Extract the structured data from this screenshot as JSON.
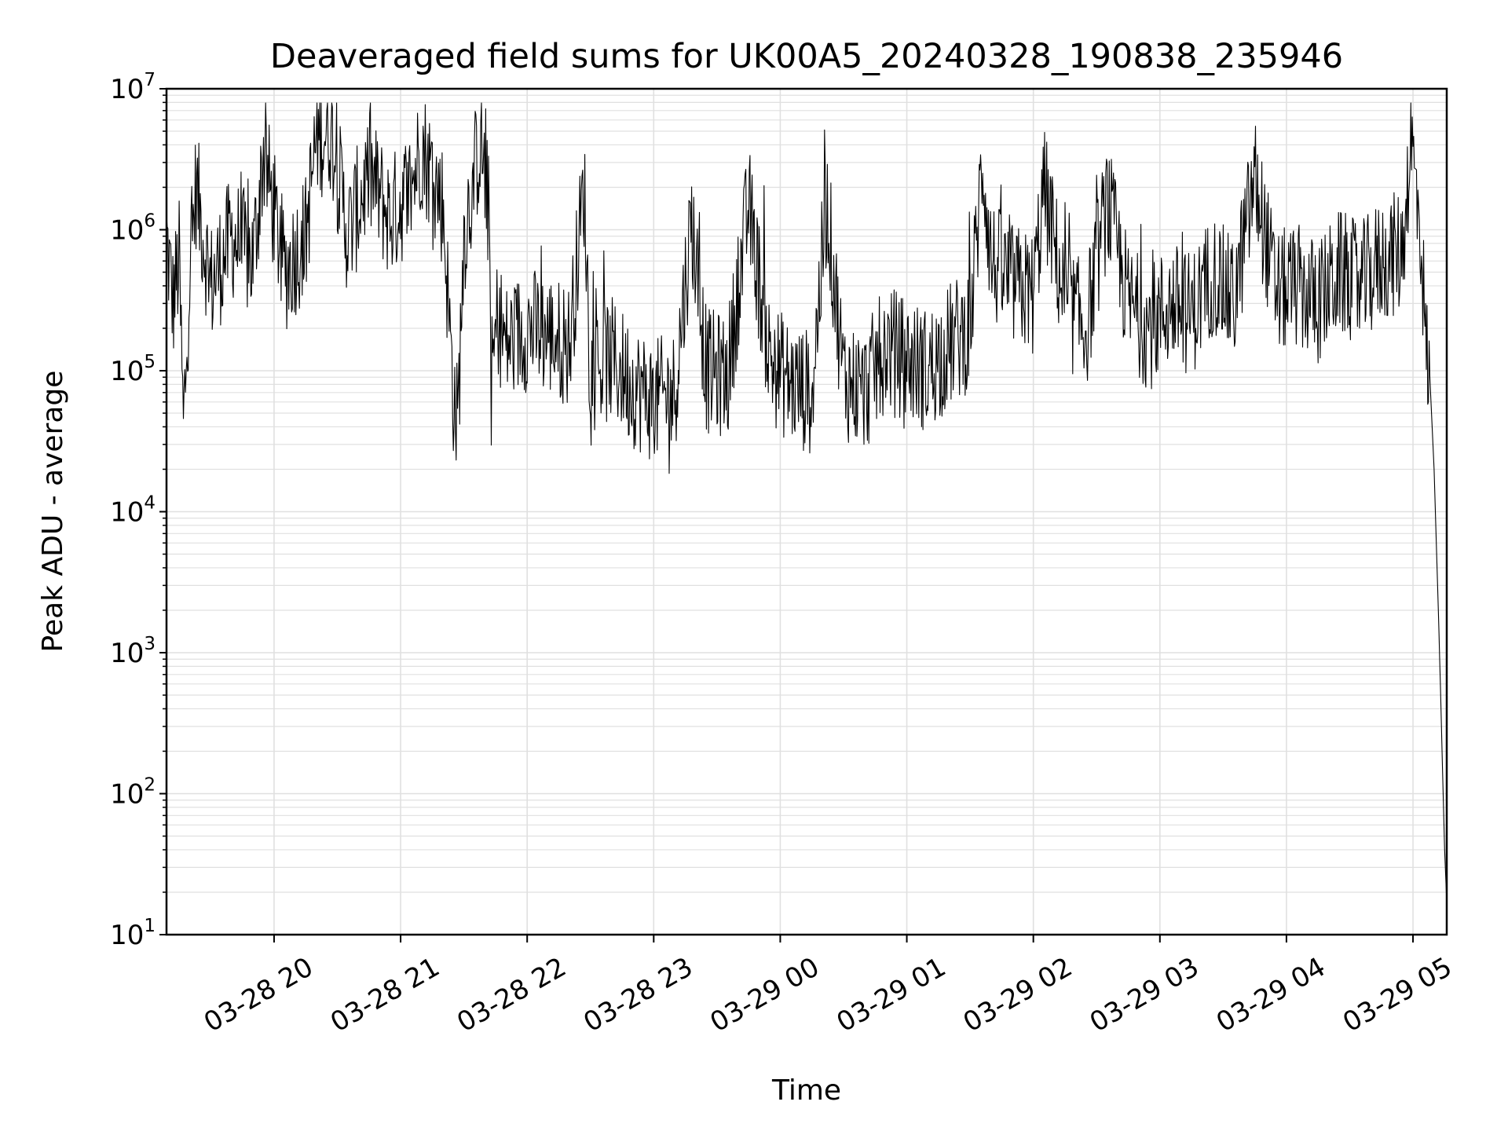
{
  "chart_data": {
    "type": "line",
    "title": "Deaveraged field sums for UK00A5_20240328_190838_235946",
    "xlabel": "Time",
    "ylabel": "Peak ADU - average",
    "yscale": "log",
    "ylim": [
      10,
      10000000
    ],
    "xlim": [
      "2024-03-28 19:09",
      "2024-03-29 05:16"
    ],
    "grid": true,
    "legend": "none",
    "line_color": "#000000",
    "grid_color": "#e0e0e0",
    "x_ticks": [
      {
        "label": "03-28 20",
        "t": "2024-03-28 20:00"
      },
      {
        "label": "03-28 21",
        "t": "2024-03-28 21:00"
      },
      {
        "label": "03-28 22",
        "t": "2024-03-28 22:00"
      },
      {
        "label": "03-28 23",
        "t": "2024-03-28 23:00"
      },
      {
        "label": "03-29 00",
        "t": "2024-03-29 00:00"
      },
      {
        "label": "03-29 01",
        "t": "2024-03-29 01:00"
      },
      {
        "label": "03-29 02",
        "t": "2024-03-29 02:00"
      },
      {
        "label": "03-29 03",
        "t": "2024-03-29 03:00"
      },
      {
        "label": "03-29 04",
        "t": "2024-03-29 04:00"
      },
      {
        "label": "03-29 05",
        "t": "2024-03-29 05:00"
      }
    ],
    "y_ticks": [
      {
        "base": "10",
        "exp": "1",
        "value": 10
      },
      {
        "base": "10",
        "exp": "2",
        "value": 100
      },
      {
        "base": "10",
        "exp": "3",
        "value": 1000
      },
      {
        "base": "10",
        "exp": "4",
        "value": 10000
      },
      {
        "base": "10",
        "exp": "5",
        "value": 100000
      },
      {
        "base": "10",
        "exp": "6",
        "value": 1000000
      },
      {
        "base": "10",
        "exp": "7",
        "value": 10000000
      }
    ],
    "series": [
      {
        "points": [
          [
            "2024-03-28 19:09",
            900000
          ],
          [
            "2024-03-28 19:12",
            300000
          ],
          [
            "2024-03-28 19:15",
            600000
          ],
          [
            "2024-03-28 19:17",
            38000
          ],
          [
            "2024-03-28 19:20",
            500000
          ],
          [
            "2024-03-28 19:23",
            2000000
          ],
          [
            "2024-03-28 19:30",
            400000
          ],
          [
            "2024-03-28 19:40",
            900000
          ],
          [
            "2024-03-28 19:50",
            600000
          ],
          [
            "2024-03-28 19:55",
            3500000
          ],
          [
            "2024-03-28 20:05",
            500000
          ],
          [
            "2024-03-28 20:15",
            900000
          ],
          [
            "2024-03-28 20:20",
            4500000
          ],
          [
            "2024-03-28 20:27",
            5200000
          ],
          [
            "2024-03-28 20:35",
            900000
          ],
          [
            "2024-03-28 20:45",
            2500000
          ],
          [
            "2024-03-28 20:55",
            1200000
          ],
          [
            "2024-03-28 21:05",
            2000000
          ],
          [
            "2024-03-28 21:10",
            4000000
          ],
          [
            "2024-03-28 21:20",
            1500000
          ],
          [
            "2024-03-28 21:25",
            70000
          ],
          [
            "2024-03-28 21:27",
            40000
          ],
          [
            "2024-03-28 21:30",
            900000
          ],
          [
            "2024-03-28 21:35",
            2500000
          ],
          [
            "2024-03-28 21:38",
            4500000
          ],
          [
            "2024-03-28 21:42",
            1200000
          ],
          [
            "2024-03-28 21:43",
            80000
          ],
          [
            "2024-03-28 21:46",
            250000
          ],
          [
            "2024-03-28 21:50",
            150000
          ],
          [
            "2024-03-28 22:00",
            200000
          ],
          [
            "2024-03-28 22:10",
            180000
          ],
          [
            "2024-03-28 22:20",
            150000
          ],
          [
            "2024-03-28 22:27",
            2000000
          ],
          [
            "2024-03-28 22:30",
            100000
          ],
          [
            "2024-03-28 22:40",
            120000
          ],
          [
            "2024-03-28 22:50",
            80000
          ],
          [
            "2024-03-28 23:00",
            60000
          ],
          [
            "2024-03-28 23:10",
            70000
          ],
          [
            "2024-03-28 23:18",
            1200000
          ],
          [
            "2024-03-28 23:25",
            100000
          ],
          [
            "2024-03-28 23:35",
            90000
          ],
          [
            "2024-03-28 23:45",
            1500000
          ],
          [
            "2024-03-28 23:55",
            120000
          ],
          [
            "2024-03-29 00:05",
            80000
          ],
          [
            "2024-03-29 00:15",
            70000
          ],
          [
            "2024-03-29 00:22",
            1600000
          ],
          [
            "2024-03-29 00:30",
            90000
          ],
          [
            "2024-03-29 00:40",
            70000
          ],
          [
            "2024-03-29 00:50",
            150000
          ],
          [
            "2024-03-29 01:00",
            120000
          ],
          [
            "2024-03-29 01:10",
            100000
          ],
          [
            "2024-03-29 01:20",
            150000
          ],
          [
            "2024-03-29 01:30",
            200000
          ],
          [
            "2024-03-29 01:36",
            3200000
          ],
          [
            "2024-03-29 01:40",
            600000
          ],
          [
            "2024-03-29 01:50",
            400000
          ],
          [
            "2024-03-29 02:00",
            350000
          ],
          [
            "2024-03-29 02:05",
            2000000
          ],
          [
            "2024-03-29 02:15",
            300000
          ],
          [
            "2024-03-29 02:25",
            200000
          ],
          [
            "2024-03-29 02:35",
            1600000
          ],
          [
            "2024-03-29 02:45",
            300000
          ],
          [
            "2024-03-29 02:55",
            200000
          ],
          [
            "2024-03-29 03:05",
            300000
          ],
          [
            "2024-03-29 03:15",
            250000
          ],
          [
            "2024-03-29 03:25",
            500000
          ],
          [
            "2024-03-29 03:35",
            300000
          ],
          [
            "2024-03-29 03:45",
            2300000
          ],
          [
            "2024-03-29 03:55",
            350000
          ],
          [
            "2024-03-29 04:05",
            400000
          ],
          [
            "2024-03-29 04:15",
            300000
          ],
          [
            "2024-03-29 04:25",
            500000
          ],
          [
            "2024-03-29 04:35",
            400000
          ],
          [
            "2024-03-29 04:45",
            600000
          ],
          [
            "2024-03-29 04:55",
            700000
          ],
          [
            "2024-03-29 04:59",
            4800000
          ],
          [
            "2024-03-29 05:02",
            1500000
          ],
          [
            "2024-03-29 05:04",
            800000
          ],
          [
            "2024-03-29 05:06",
            150000
          ],
          [
            "2024-03-29 05:08",
            90000
          ],
          [
            "2024-03-29 05:10",
            20000
          ],
          [
            "2024-03-29 05:12",
            2000
          ],
          [
            "2024-03-29 05:13",
            600
          ],
          [
            "2024-03-29 05:14",
            150
          ],
          [
            "2024-03-29 05:15",
            40
          ],
          [
            "2024-03-29 05:16",
            17
          ]
        ]
      }
    ]
  }
}
